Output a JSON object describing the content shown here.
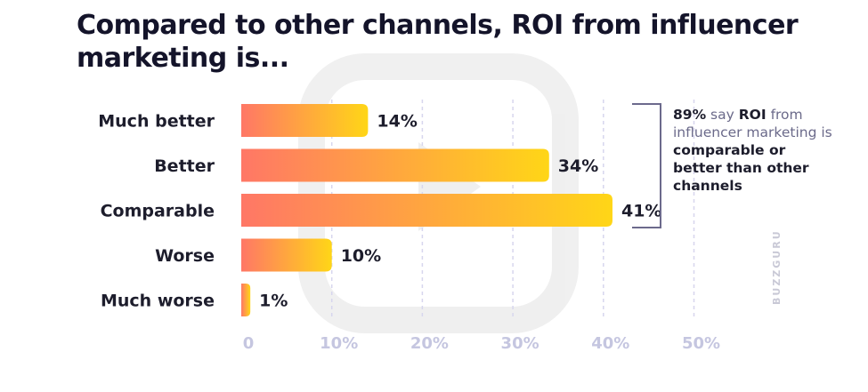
{
  "title": "Compared to other channels, ROI from influencer marketing is...",
  "annotation": {
    "pct": "89%",
    "say": "say",
    "roi": "ROI",
    "line_a": "from influencer marketing is",
    "line_b": "comparable or better than other channels"
  },
  "brand": "BUZZGURU",
  "colors": {
    "bar_start": "#ff7766",
    "bar_end": "#ffd617",
    "grid": "#d7d6ee",
    "bracket": "#6c6a8c"
  },
  "chart_data": {
    "type": "bar",
    "orientation": "horizontal",
    "title": "Compared to other channels, ROI from influencer marketing is...",
    "categories": [
      "Much better",
      "Better",
      "Comparable",
      "Worse",
      "Much worse"
    ],
    "values": [
      14,
      34,
      41,
      10,
      1
    ],
    "value_labels": [
      "14%",
      "34%",
      "41%",
      "10%",
      "1%"
    ],
    "xlim": [
      0,
      50
    ],
    "x_ticks": [
      0,
      10,
      20,
      30,
      40,
      50
    ],
    "x_tick_labels": [
      "0",
      "10%",
      "20%",
      "30%",
      "40%",
      "50%"
    ],
    "grid": true,
    "annotation_bracket_categories": [
      "Much better",
      "Better",
      "Comparable"
    ]
  }
}
